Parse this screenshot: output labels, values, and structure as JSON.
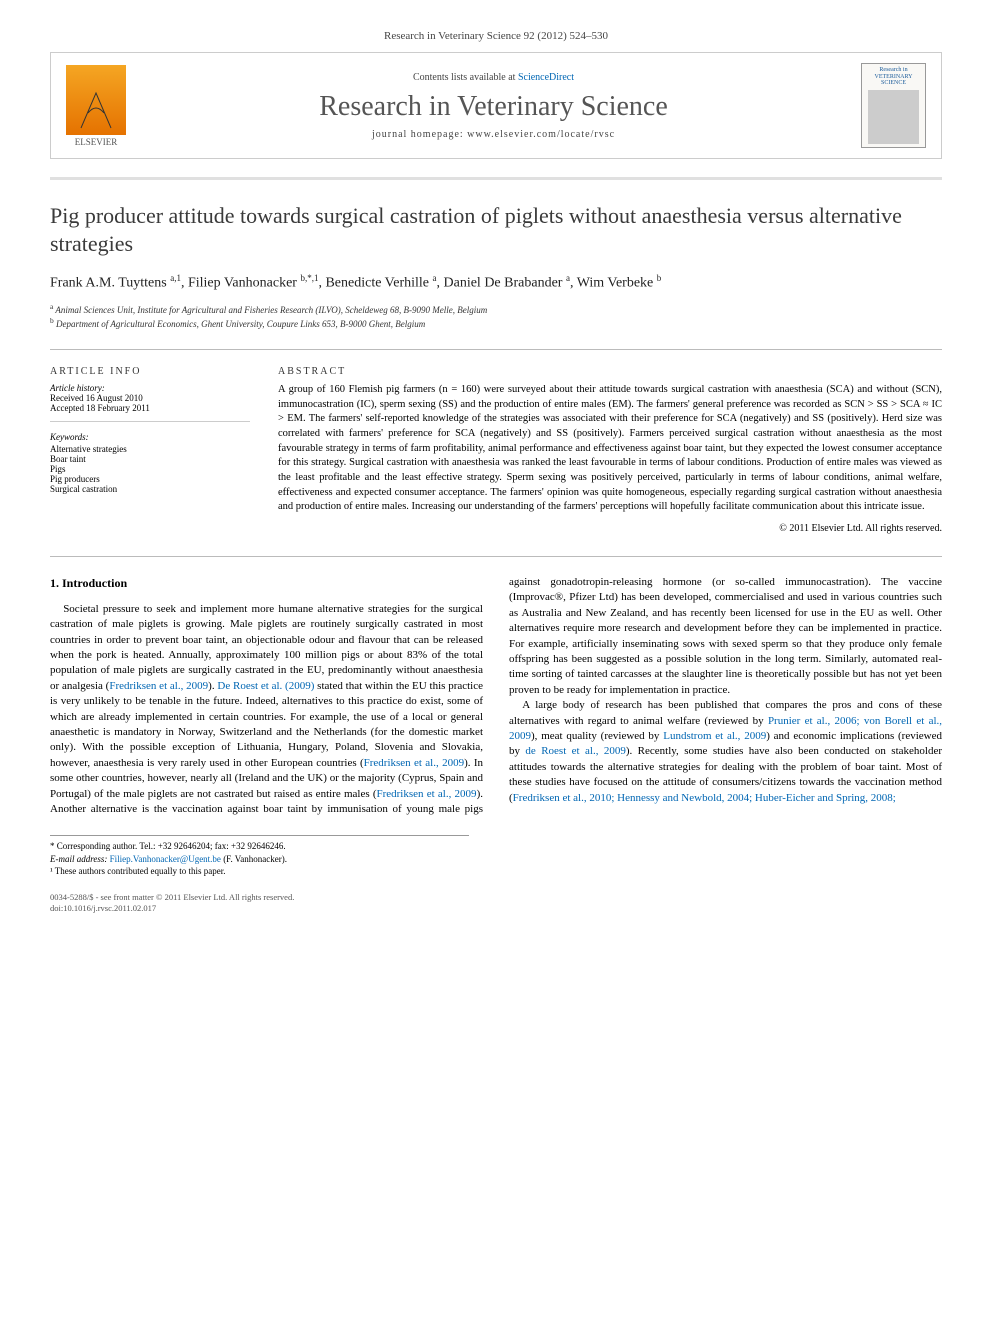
{
  "journal_ref": "Research in Veterinary Science 92 (2012) 524–530",
  "header": {
    "elsevier_label": "ELSEVIER",
    "contents_prefix": "Contents lists available at ",
    "contents_link": "ScienceDirect",
    "journal_name": "Research in Veterinary Science",
    "homepage_label": "journal homepage: www.elsevier.com/locate/rvsc",
    "cover_title": "Research in VETERINARY SCIENCE"
  },
  "title": "Pig producer attitude towards surgical castration of piglets without anaesthesia versus alternative strategies",
  "authors_html": "Frank A.M. Tuyttens <sup>a,1</sup>, Filiep Vanhonacker <sup>b,*,1</sup>, Benedicte Verhille <sup>a</sup>, Daniel De Brabander <sup>a</sup>, Wim Verbeke <sup>b</sup>",
  "affiliations": [
    {
      "sup": "a",
      "text": "Animal Sciences Unit, Institute for Agricultural and Fisheries Research (ILVO), Scheldeweg 68, B-9090 Melle, Belgium"
    },
    {
      "sup": "b",
      "text": "Department of Agricultural Economics, Ghent University, Coupure Links 653, B-9000 Ghent, Belgium"
    }
  ],
  "article_info": {
    "heading": "ARTICLE INFO",
    "history_label": "Article history:",
    "received": "Received 16 August 2010",
    "accepted": "Accepted 18 February 2011",
    "keywords_label": "Keywords:",
    "keywords": [
      "Alternative strategies",
      "Boar taint",
      "Pigs",
      "Pig producers",
      "Surgical castration"
    ]
  },
  "abstract": {
    "heading": "ABSTRACT",
    "text": "A group of 160 Flemish pig farmers (n = 160) were surveyed about their attitude towards surgical castration with anaesthesia (SCA) and without (SCN), immunocastration (IC), sperm sexing (SS) and the production of entire males (EM). The farmers' general preference was recorded as SCN > SS > SCA ≈ IC > EM. The farmers' self-reported knowledge of the strategies was associated with their preference for SCA (negatively) and SS (positively). Herd size was correlated with farmers' preference for SCA (negatively) and SS (positively). Farmers perceived surgical castration without anaesthesia as the most favourable strategy in terms of farm profitability, animal performance and effectiveness against boar taint, but they expected the lowest consumer acceptance for this strategy. Surgical castration with anaesthesia was ranked the least favourable in terms of labour conditions. Production of entire males was viewed as the least profitable and the least effective strategy. Sperm sexing was positively perceived, particularly in terms of labour conditions, animal welfare, effectiveness and expected consumer acceptance. The farmers' opinion was quite homogeneous, especially regarding surgical castration without anaesthesia and production of entire males. Increasing our understanding of the farmers' perceptions will hopefully facilitate communication about this intricate issue.",
    "copyright": "© 2011 Elsevier Ltd. All rights reserved."
  },
  "intro": {
    "heading": "1. Introduction",
    "p1_pre": "Societal pressure to seek and implement more humane alternative strategies for the surgical castration of male piglets is growing. Male piglets are routinely surgically castrated in most countries in order to prevent boar taint, an objectionable odour and flavour that can be released when the pork is heated. Annually, approximately 100 million pigs or about 83% of the total population of male piglets are surgically castrated in the EU, predominantly without anaesthesia or analgesia (",
    "p1_link1": "Fredriksen et al., 2009",
    "p1_mid1": "). ",
    "p1_link2": "De Roest et al. (2009)",
    "p1_mid2": " stated that within the EU this practice is very unlikely to be tenable in the future. Indeed, alternatives to this practice do exist, some of which are already implemented in certain countries. For example, the use of a local or general anaesthetic is mandatory in Norway, Switzerland and the Netherlands (for the domestic market only). With the possible exception of Lithuania, Hungary, Poland, Slovenia and Slovakia, however, anaesthesia is very rarely used in other European countries (",
    "p1_link3": "Fredriksen et al., 2009",
    "p1_post": "). In some other countries, however, nearly all (Ireland and the UK) or the majority (Cyprus, Spain and Portugal) of the male piglets are not ",
    "p1_col2_pre": "castrated but raised as entire males (",
    "p1_col2_link": "Fredriksen et al., 2009",
    "p1_col2_post": "). Another alternative is the vaccination against boar taint by immunisation of young male pigs against gonadotropin-releasing hormone (or so-called immunocastration). The vaccine (Improvac®, Pfizer Ltd) has been developed, commercialised and used in various countries such as Australia and New Zealand, and has recently been licensed for use in the EU as well. Other alternatives require more research and development before they can be implemented in practice. For example, artificially inseminating sows with sexed sperm so that they produce only female offspring has been suggested as a possible solution in the long term. Similarly, automated real-time sorting of tainted carcasses at the slaughter line is theoretically possible but has not yet been proven to be ready for implementation in practice.",
    "p2_pre": "A large body of research has been published that compares the pros and cons of these alternatives with regard to animal welfare (reviewed by ",
    "p2_link1": "Prunier et al., 2006; von Borell et al., 2009",
    "p2_mid1": "), meat quality (reviewed by ",
    "p2_link2": "Lundstrom et al., 2009",
    "p2_mid2": ") and economic implications (reviewed by ",
    "p2_link3": "de Roest et al., 2009",
    "p2_mid3": "). Recently, some studies have also been conducted on stakeholder attitudes towards the alternative strategies for dealing with the problem of boar taint. Most of these studies have focused on the attitude of consumers/citizens towards the vaccination method (",
    "p2_link4": "Fredriksen et al., 2010; Hennessy and Newbold, 2004; Huber-Eicher and Spring, 2008;",
    "p2_post": ""
  },
  "footnotes": {
    "corr": "* Corresponding author. Tel.: +32 92646204; fax: +32 92646246.",
    "email_label": "E-mail address: ",
    "email": "Filiep.Vanhonacker@Ugent.be",
    "email_post": " (F. Vanhonacker).",
    "equal": "¹ These authors contributed equally to this paper."
  },
  "bottom": {
    "line1": "0034-5288/$ - see front matter © 2011 Elsevier Ltd. All rights reserved.",
    "line2": "doi:10.1016/j.rvsc.2011.02.017"
  },
  "colors": {
    "link": "#0066b3",
    "accent_border": "#e0e0e0",
    "elsevier_orange": "#e57200"
  }
}
